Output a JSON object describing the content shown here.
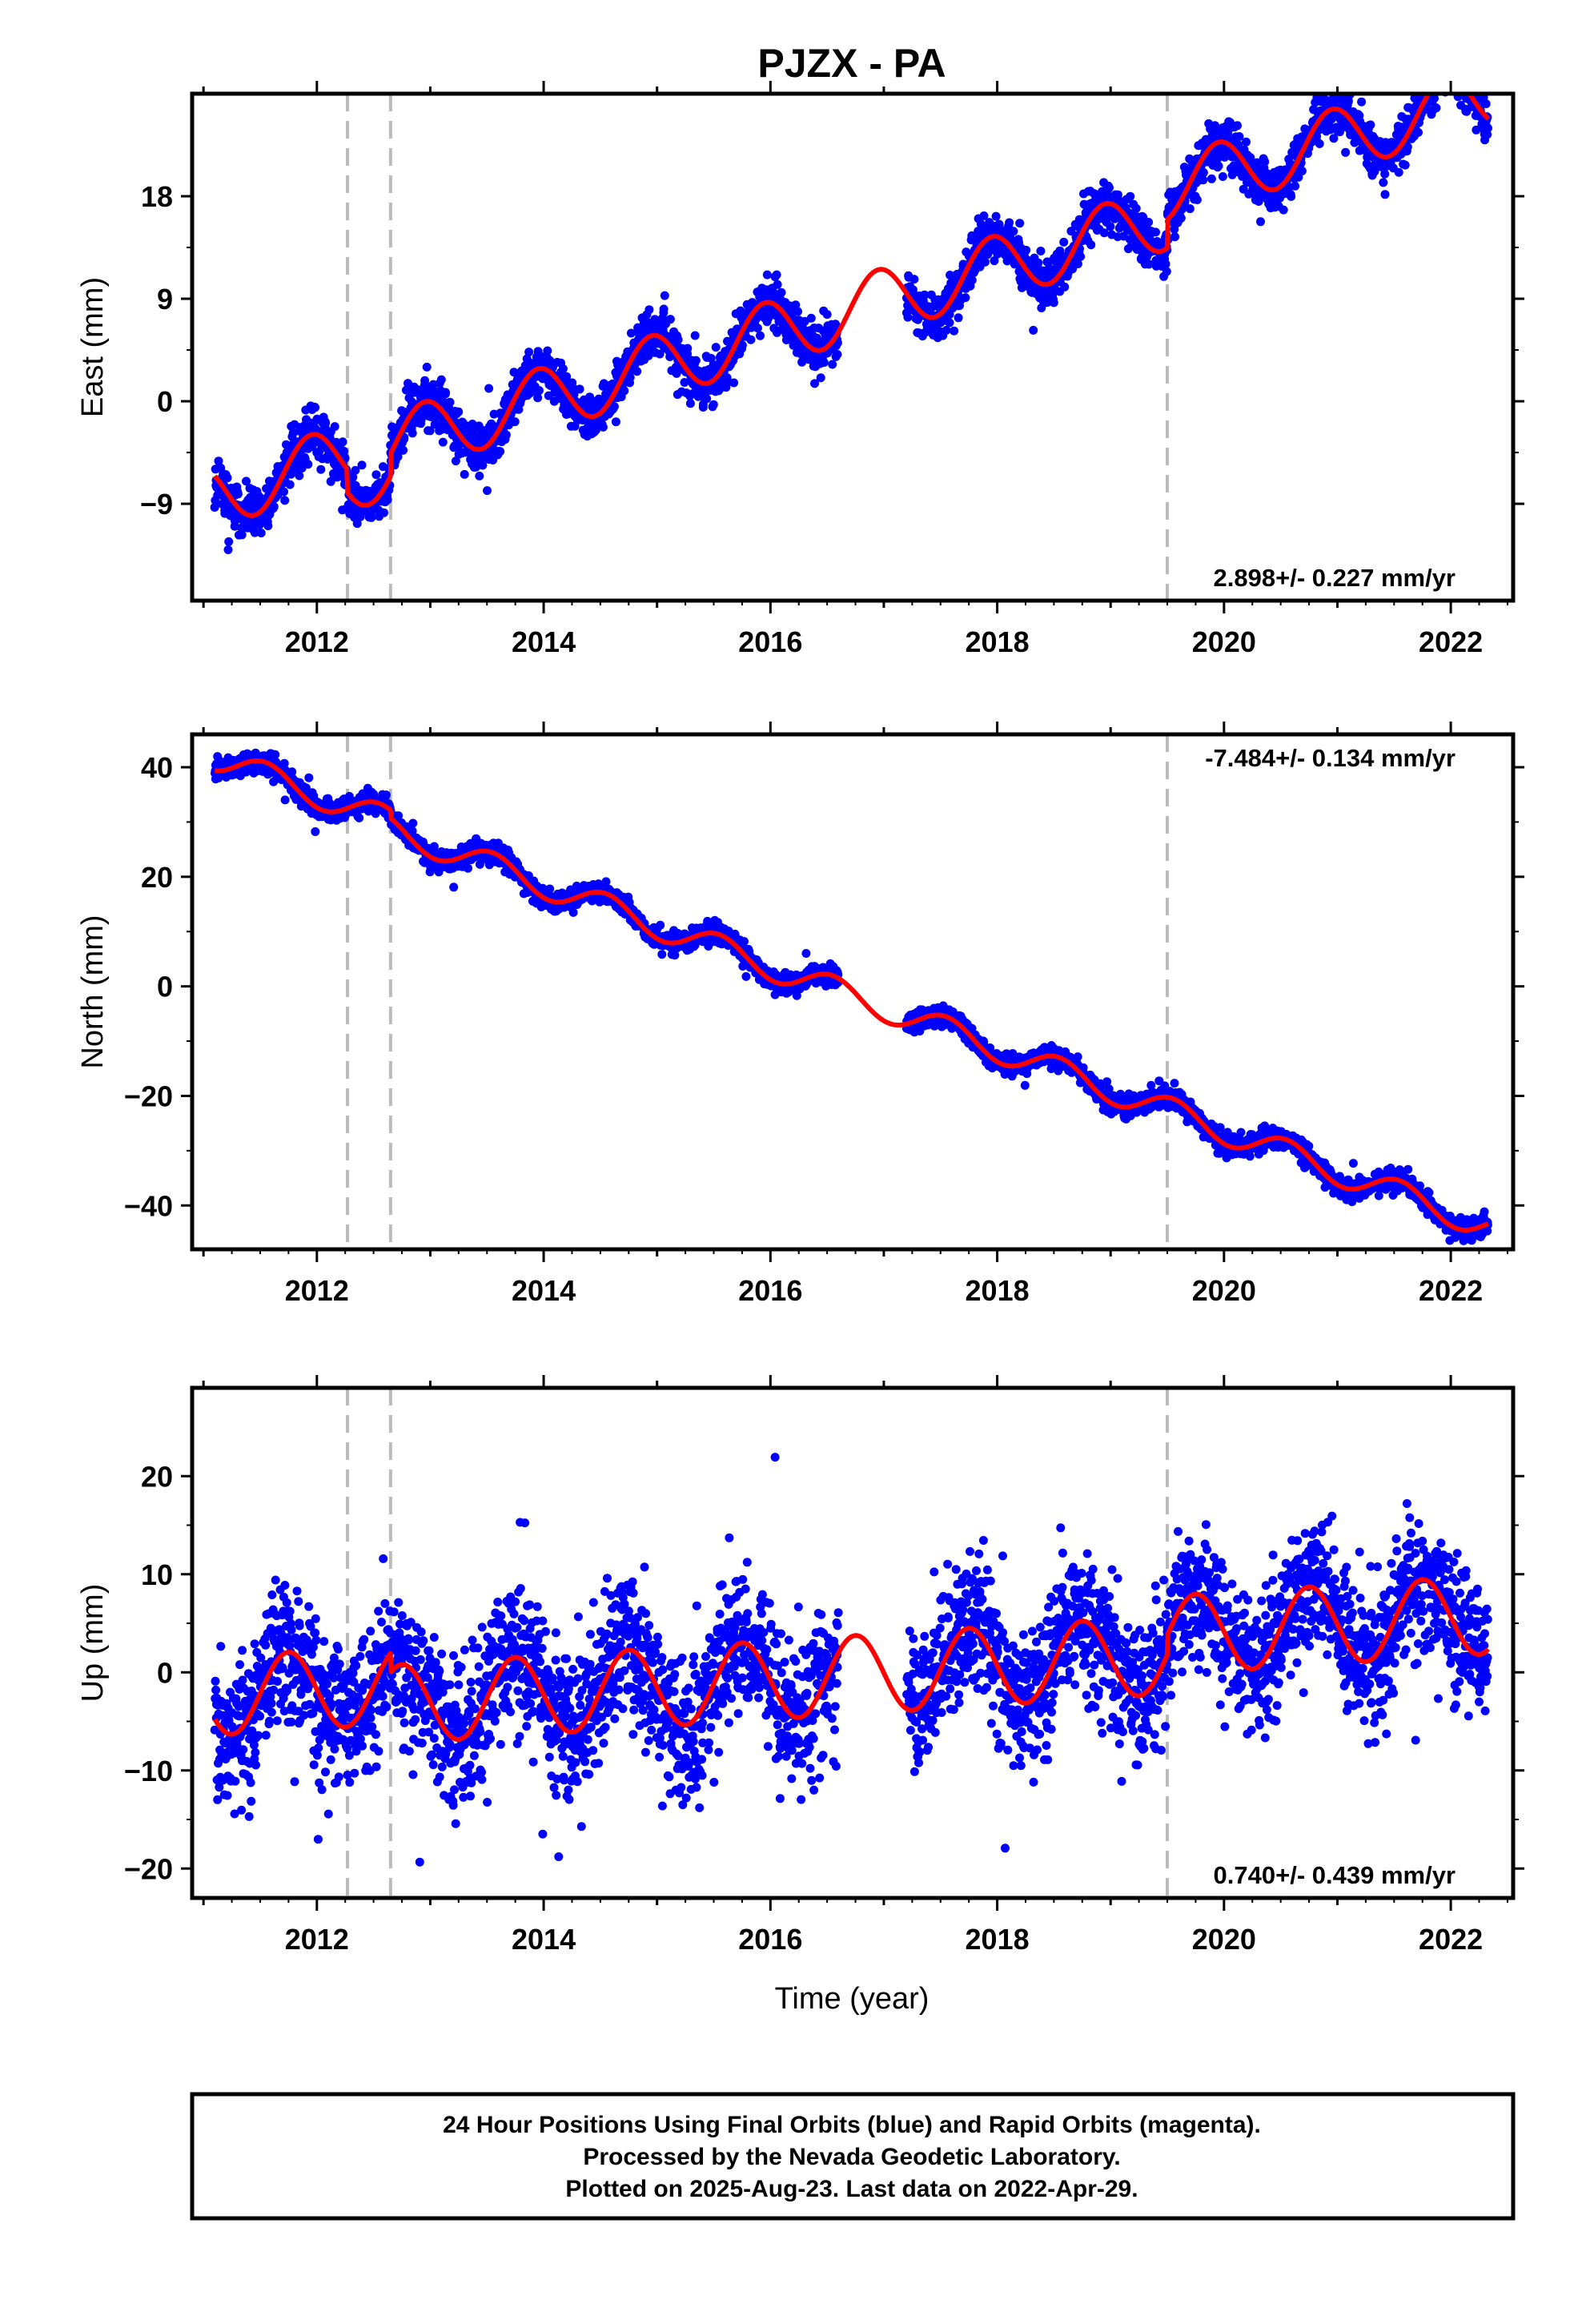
{
  "title": "PJZX - PA",
  "xlabel": "Time (year)",
  "footer": {
    "line1": "24 Hour Positions Using Final Orbits (blue) and Rapid Orbits (magenta).",
    "line2": "Processed by the Nevada Geodetic Laboratory.",
    "line3": "Plotted on 2025-Aug-23. Last data on 2022-Apr-29."
  },
  "colors": {
    "points": "#0000ff",
    "model": "#ff0000",
    "event_lines": "#bbbbbb",
    "axes": "#000000"
  },
  "chart_data": [
    {
      "type": "scatter",
      "component": "east",
      "ylabel": "East (mm)",
      "xlim": [
        2010.9,
        2022.55
      ],
      "ylim": [
        -17.5,
        27
      ],
      "xticks": [
        2012,
        2014,
        2016,
        2018,
        2020,
        2022
      ],
      "yticks": [
        -9,
        0,
        9,
        18
      ],
      "rate_text": "2.898+/- 0.227 mm/yr",
      "rate_position": "bottom-right",
      "event_lines": [
        2012.27,
        2012.65,
        2019.5
      ],
      "data_range": [
        2011.1,
        2022.33
      ],
      "gap": [
        2016.6,
        2017.2
      ],
      "model": {
        "trend_rate": 2.898,
        "value_at_2011": -8.5,
        "annual_amplitude": 2.8,
        "annual_phase_peak": 2011.95,
        "offsets": [
          {
            "x": 2012.27,
            "dy": -2.0
          },
          {
            "x": 2012.65,
            "dy": 2.0
          },
          {
            "x": 2019.5,
            "dy": 2.5
          }
        ]
      },
      "scatter_sd": 1.0,
      "point_count": 3800
    },
    {
      "type": "scatter",
      "component": "north",
      "ylabel": "North (mm)",
      "xlim": [
        2010.9,
        2022.55
      ],
      "ylim": [
        -48,
        46
      ],
      "xticks": [
        2012,
        2014,
        2016,
        2018,
        2020,
        2022
      ],
      "yticks": [
        -40,
        -20,
        0,
        20,
        40
      ],
      "rate_text": "-7.484+/- 0.134 mm/yr",
      "rate_position": "top-right",
      "event_lines": [
        2012.27,
        2012.65,
        2019.5
      ],
      "data_range": [
        2011.1,
        2022.33
      ],
      "gap": [
        2016.6,
        2017.2
      ],
      "model": {
        "trend_rate": -7.484,
        "value_at_2011": 42.5,
        "annual_amplitude": 2.5,
        "annual_phase_peak": 2011.55,
        "offsets": [
          {
            "x": 2012.65,
            "dy": -1.5
          }
        ]
      },
      "scatter_sd": 0.9,
      "point_count": 3800
    },
    {
      "type": "scatter",
      "component": "up",
      "ylabel": "Up (mm)",
      "xlim": [
        2010.9,
        2022.55
      ],
      "ylim": [
        -23,
        29
      ],
      "xticks": [
        2012,
        2014,
        2016,
        2018,
        2020,
        2022
      ],
      "yticks": [
        -20,
        -10,
        0,
        10,
        20
      ],
      "rate_text": "0.740+/- 0.439 mm/yr",
      "rate_position": "bottom-right",
      "event_lines": [
        2012.27,
        2012.65,
        2019.5
      ],
      "data_range": [
        2011.1,
        2022.33
      ],
      "gap": [
        2016.6,
        2017.2
      ],
      "model": {
        "trend_rate": 0.74,
        "value_at_2011": -2.5,
        "annual_amplitude": 4.0,
        "annual_phase_peak": 2011.75,
        "offsets": [
          {
            "x": 2012.65,
            "dy": -2.0
          },
          {
            "x": 2019.5,
            "dy": 2.0
          }
        ]
      },
      "scatter_sd": 3.6,
      "point_count": 3800
    }
  ]
}
